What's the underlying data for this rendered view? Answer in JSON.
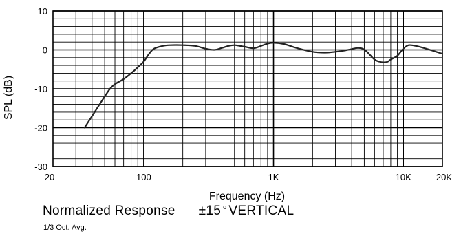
{
  "chart_data": {
    "type": "line",
    "xlabel": "Frequency (Hz)",
    "ylabel": "SPL (dB)",
    "x_scale": "log",
    "xlim": [
      20,
      20000
    ],
    "ylim": [
      -30,
      10
    ],
    "x_ticks": [
      {
        "value": 20,
        "label": "20"
      },
      {
        "value": 100,
        "label": "100"
      },
      {
        "value": 1000,
        "label": "1K"
      },
      {
        "value": 10000,
        "label": "10K"
      },
      {
        "value": 20000,
        "label": "20K"
      }
    ],
    "y_ticks": [
      {
        "value": 10,
        "label": "10"
      },
      {
        "value": 0,
        "label": "0"
      },
      {
        "value": -10,
        "label": "-10"
      },
      {
        "value": -20,
        "label": "-20"
      },
      {
        "value": -30,
        "label": "-30"
      }
    ],
    "grid": true,
    "series": [
      {
        "x": [
          35,
          40,
          50,
          55,
          60,
          70,
          80,
          90,
          100,
          110,
          120,
          140,
          160,
          200,
          250,
          300,
          350,
          400,
          450,
          500,
          550,
          600,
          700,
          800,
          900,
          1000,
          1200,
          1500,
          2000,
          2500,
          3000,
          3500,
          4000,
          4500,
          5000,
          5500,
          6000,
          6500,
          7000,
          7500,
          8000,
          9000,
          10000,
          11000,
          12500,
          15000,
          20000
        ],
        "y": [
          -20,
          -17,
          -12,
          -10,
          -8.8,
          -7.5,
          -6,
          -4.5,
          -3,
          -1,
          0.3,
          1,
          1.2,
          1.2,
          1.0,
          0.3,
          0.0,
          0.5,
          1.0,
          1.2,
          1.0,
          0.8,
          0.4,
          1.0,
          1.6,
          1.8,
          1.5,
          0.5,
          -0.5,
          -0.7,
          -0.5,
          -0.2,
          0.2,
          0.5,
          0.1,
          -1.2,
          -2.5,
          -3.0,
          -3.2,
          -3.1,
          -2.5,
          -1.5,
          0.3,
          1.2,
          1.0,
          0.3,
          -1.0
        ]
      }
    ]
  },
  "caption": {
    "title": "Normalized Response",
    "angle": "±15",
    "degree_mark": "o",
    "orientation": "VERTICAL",
    "note": "1/3 Oct. Avg."
  }
}
